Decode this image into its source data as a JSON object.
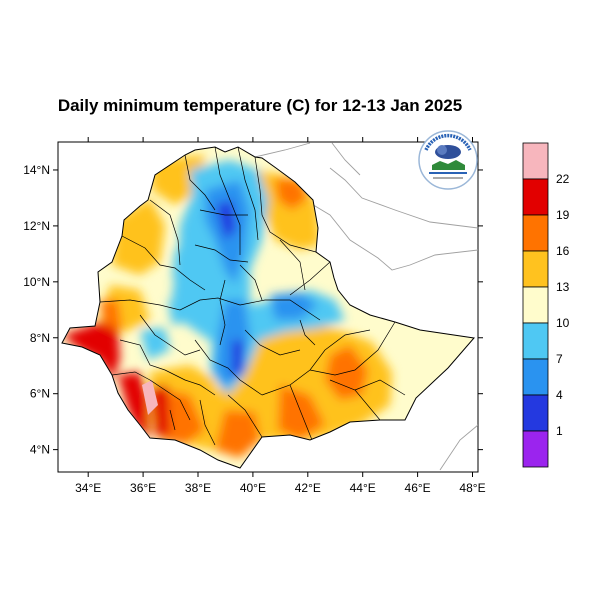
{
  "title": "Daily minimum temperature (C) for 12-13 Jan 2025",
  "map": {
    "x_ticks": [
      "34°E",
      "36°E",
      "38°E",
      "40°E",
      "42°E",
      "44°E",
      "46°E",
      "48°E"
    ],
    "x_tick_values": [
      34,
      36,
      38,
      40,
      42,
      44,
      46,
      48
    ],
    "y_ticks": [
      "14°N",
      "12°N",
      "10°N",
      "8°N",
      "6°N",
      "4°N"
    ],
    "y_tick_values": [
      14,
      12,
      10,
      8,
      6,
      4
    ],
    "lon_range": [
      32.9,
      48.2
    ],
    "lat_range": [
      3.2,
      15.0
    ],
    "logo": "Ethiopian Meteorology Institute emblem"
  },
  "legend": {
    "labels": [
      "22",
      "19",
      "16",
      "13",
      "10",
      "7",
      "4",
      "1"
    ],
    "colors": [
      "#f7b6bd",
      "#e20000",
      "#ff7300",
      "#ffc21f",
      "#fffccc",
      "#4fc8f3",
      "#2a93f0",
      "#2439e0",
      "#9b24ee"
    ]
  },
  "colors": {
    "background": "#ffffff",
    "neighbor_border": "#a0a0a0",
    "admin_border": "#000000"
  }
}
